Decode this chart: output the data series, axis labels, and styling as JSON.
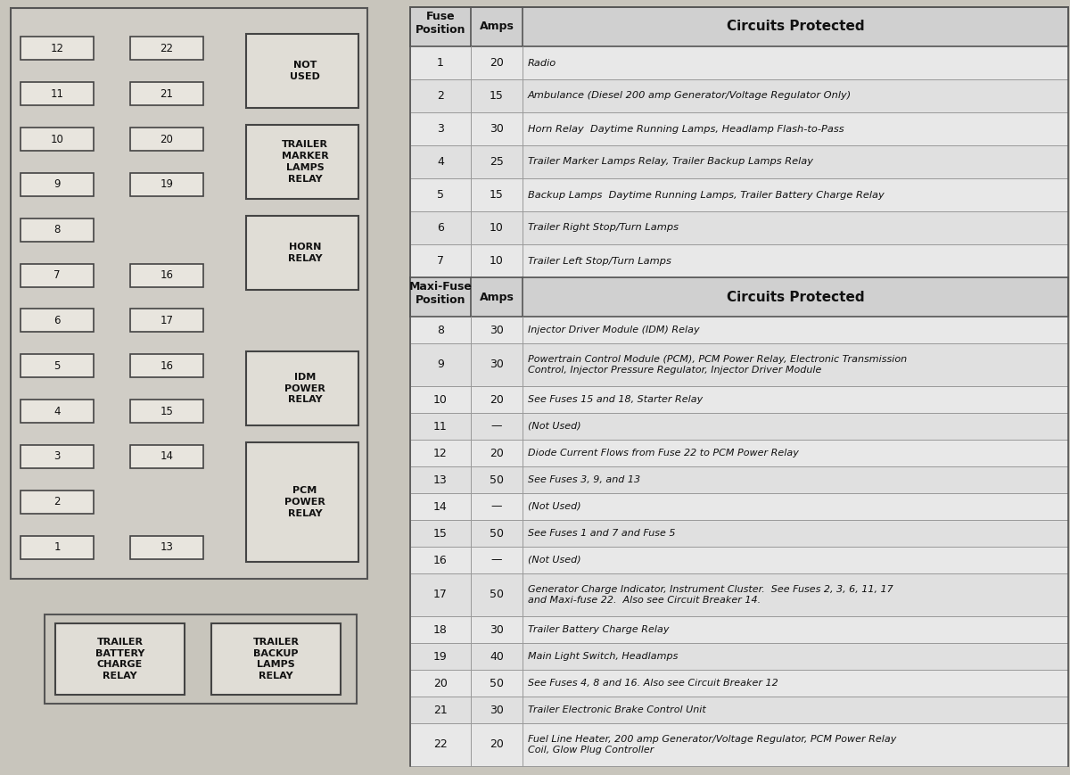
{
  "bg_color": "#c8c5bc",
  "left_box_bg": "#d0cdc6",
  "fuse_box_bg": "#dedbd4",
  "fuse_box_edge": "#e8e5de",
  "relay_box_bg": "#e0ddd6",
  "table_bg": "#e8e8e8",
  "table_bg2": "#e0e0e0",
  "header_bg": "#d0d0d0",
  "border_color": "#666666",
  "text_color": "#111111",
  "fuse_rows": [
    {
      "pos": "1",
      "amps": "20",
      "circuit": "Radio"
    },
    {
      "pos": "2",
      "amps": "15",
      "circuit": "Ambulance (Diesel 200 amp Generator/Voltage Regulator Only)"
    },
    {
      "pos": "3",
      "amps": "30",
      "circuit": "Horn Relay  Daytime Running Lamps, Headlamp Flash-to-Pass"
    },
    {
      "pos": "4",
      "amps": "25",
      "circuit": "Trailer Marker Lamps Relay, Trailer Backup Lamps Relay"
    },
    {
      "pos": "5",
      "amps": "15",
      "circuit": "Backup Lamps  Daytime Running Lamps, Trailer Battery Charge Relay"
    },
    {
      "pos": "6",
      "amps": "10",
      "circuit": "Trailer Right Stop/Turn Lamps"
    },
    {
      "pos": "7",
      "amps": "10",
      "circuit": "Trailer Left Stop/Turn Lamps"
    }
  ],
  "maxi_rows": [
    {
      "pos": "8",
      "amps": "30",
      "circuit": "Injector Driver Module (IDM) Relay",
      "tall": false
    },
    {
      "pos": "9",
      "amps": "30",
      "circuit": "Powertrain Control Module (PCM), PCM Power Relay, Electronic Transmission\nControl, Injector Pressure Regulator, Injector Driver Module",
      "tall": true
    },
    {
      "pos": "10",
      "amps": "20",
      "circuit": "See Fuses 15 and 18, Starter Relay",
      "tall": false
    },
    {
      "pos": "11",
      "amps": "—",
      "circuit": "(Not Used)",
      "tall": false
    },
    {
      "pos": "12",
      "amps": "20",
      "circuit": "Diode Current Flows from Fuse 22 to PCM Power Relay",
      "tall": false
    },
    {
      "pos": "13",
      "amps": "50",
      "circuit": "See Fuses 3, 9, and 13",
      "tall": false
    },
    {
      "pos": "14",
      "amps": "—",
      "circuit": "(Not Used)",
      "tall": false
    },
    {
      "pos": "15",
      "amps": "50",
      "circuit": "See Fuses 1 and 7 and Fuse 5",
      "tall": false
    },
    {
      "pos": "16",
      "amps": "—",
      "circuit": "(Not Used)",
      "tall": false
    },
    {
      "pos": "17",
      "amps": "50",
      "circuit": "Generator Charge Indicator, Instrument Cluster.  See Fuses 2, 3, 6, 11, 17\nand Maxi-fuse 22.  Also see Circuit Breaker 14.",
      "tall": true
    },
    {
      "pos": "18",
      "amps": "30",
      "circuit": "Trailer Battery Charge Relay",
      "tall": false
    },
    {
      "pos": "19",
      "amps": "40",
      "circuit": "Main Light Switch, Headlamps",
      "tall": false
    },
    {
      "pos": "20",
      "amps": "50",
      "circuit": "See Fuses 4, 8 and 16. Also see Circuit Breaker 12",
      "tall": false
    },
    {
      "pos": "21",
      "amps": "30",
      "circuit": "Trailer Electronic Brake Control Unit",
      "tall": false
    },
    {
      "pos": "22",
      "amps": "20",
      "circuit": "Fuel Line Heater, 200 amp Generator/Voltage Regulator, PCM Power Relay\nCoil, Glow Plug Controller",
      "tall": true
    }
  ],
  "left_col1": [
    "12",
    "11",
    "10",
    "9",
    "8",
    "7",
    "6",
    "5",
    "4",
    "3",
    "2",
    "1"
  ],
  "mid_col": [
    "22",
    "21",
    "20",
    "19",
    "",
    "16",
    "17",
    "16",
    "15",
    "14",
    "",
    "13"
  ],
  "relay_specs": [
    {
      "label": "NOT\nUSED",
      "r_start": 0,
      "r_end": 1
    },
    {
      "label": "TRAILER\nMARKER\nLAMPS\nRELAY",
      "r_start": 2,
      "r_end": 3
    },
    {
      "label": "HORN\nRELAY",
      "r_start": 4,
      "r_end": 5
    },
    {
      "label": "IDM\nPOWER\nRELAY",
      "r_start": 7,
      "r_end": 8
    },
    {
      "label": "PCM\nPOWER\nRELAY",
      "r_start": 9,
      "r_end": 11
    }
  ],
  "bottom_relays": [
    "TRAILER\nBATTERY\nCHARGE\nRELAY",
    "TRAILER\nBACKUP\nLAMPS\nRELAY"
  ]
}
